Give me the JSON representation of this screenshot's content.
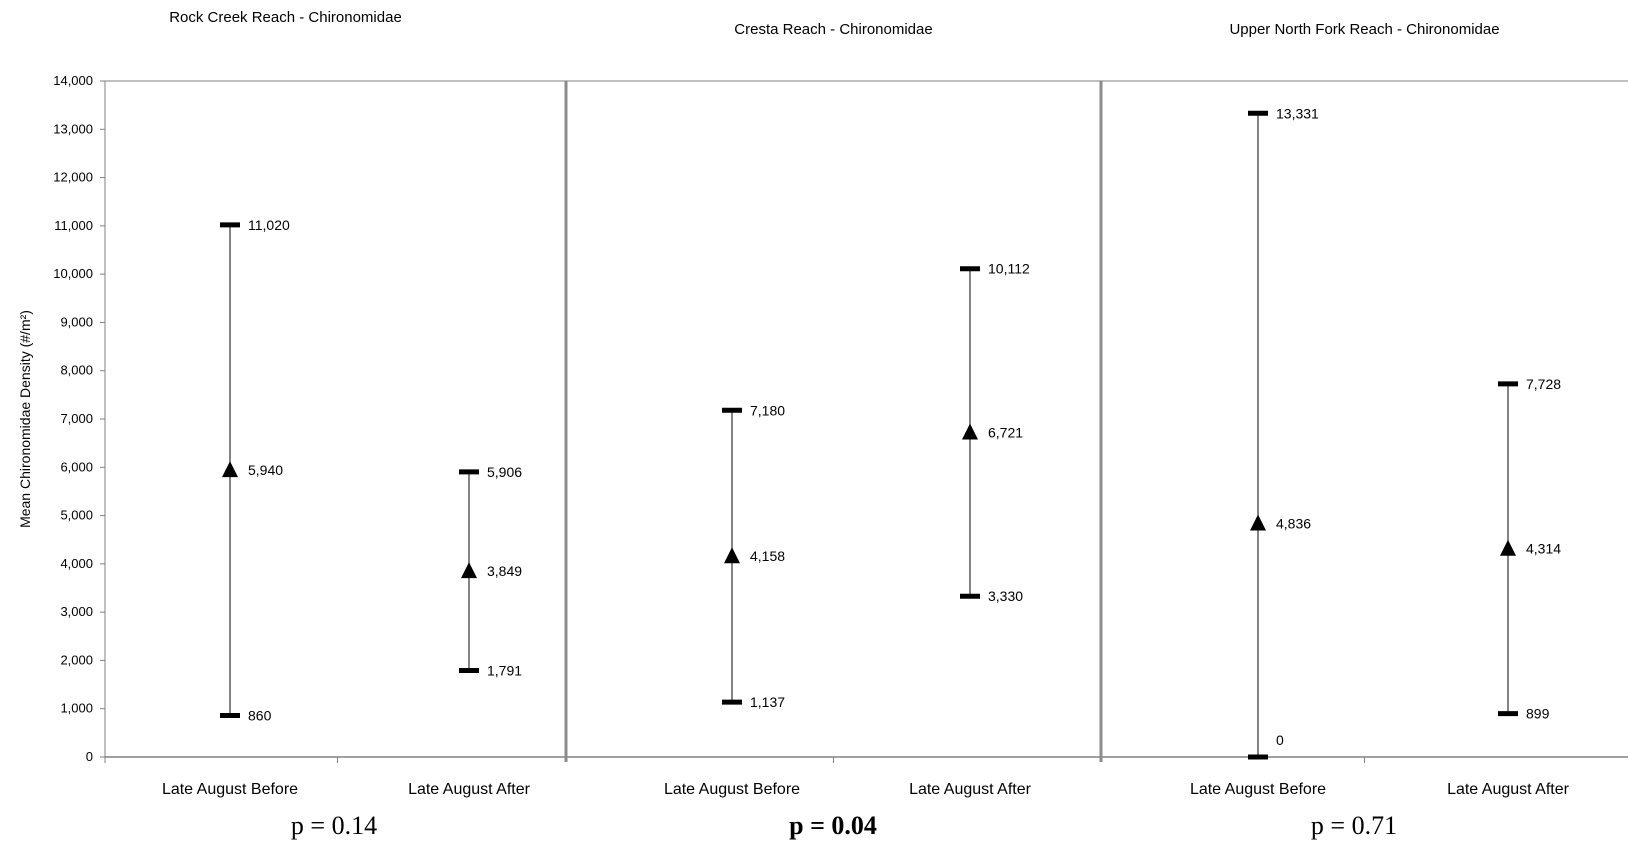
{
  "chart_data": [
    {
      "type": "error_bar",
      "title": "Rock Creek Reach - Chironomidae",
      "ylabel": "Mean Chironomidae Density (#/m²)",
      "ylim": [
        0,
        14000
      ],
      "yticks": [
        "0",
        "1,000",
        "2,000",
        "3,000",
        "4,000",
        "5,000",
        "6,000",
        "7,000",
        "8,000",
        "9,000",
        "10,000",
        "11,000",
        "12,000",
        "13,000",
        "14,000"
      ],
      "categories": [
        "Late August Before",
        "Late August After"
      ],
      "mean": [
        5940,
        3849
      ],
      "upper": [
        11020,
        5906
      ],
      "lower": [
        860,
        1791
      ],
      "mean_labels": [
        "5,940",
        "3,849"
      ],
      "upper_labels": [
        "11,020",
        "5,906"
      ],
      "lower_labels": [
        "860",
        "1,791"
      ],
      "p_value": "p = 0.14",
      "p_bold": false
    },
    {
      "type": "error_bar",
      "title": "Cresta Reach - Chironomidae",
      "ylim": [
        0,
        14000
      ],
      "categories": [
        "Late August Before",
        "Late August After"
      ],
      "mean": [
        4158,
        6721
      ],
      "upper": [
        7180,
        10112
      ],
      "lower": [
        1137,
        3330
      ],
      "mean_labels": [
        "4,158",
        "6,721"
      ],
      "upper_labels": [
        "7,180",
        "10,112"
      ],
      "lower_labels": [
        "1,137",
        "3,330"
      ],
      "p_value": "p = 0.04",
      "p_bold": true
    },
    {
      "type": "error_bar",
      "title": "Upper North Fork Reach - Chironomidae",
      "ylim": [
        0,
        14000
      ],
      "categories": [
        "Late August Before",
        "Late August After"
      ],
      "mean": [
        4836,
        4314
      ],
      "upper": [
        13331,
        7728
      ],
      "lower": [
        0,
        899
      ],
      "mean_labels": [
        "4,836",
        "4,314"
      ],
      "upper_labels": [
        "13,331",
        "7,728"
      ],
      "lower_labels": [
        "0",
        "899"
      ],
      "p_value": "p = 0.71",
      "p_bold": false
    }
  ]
}
